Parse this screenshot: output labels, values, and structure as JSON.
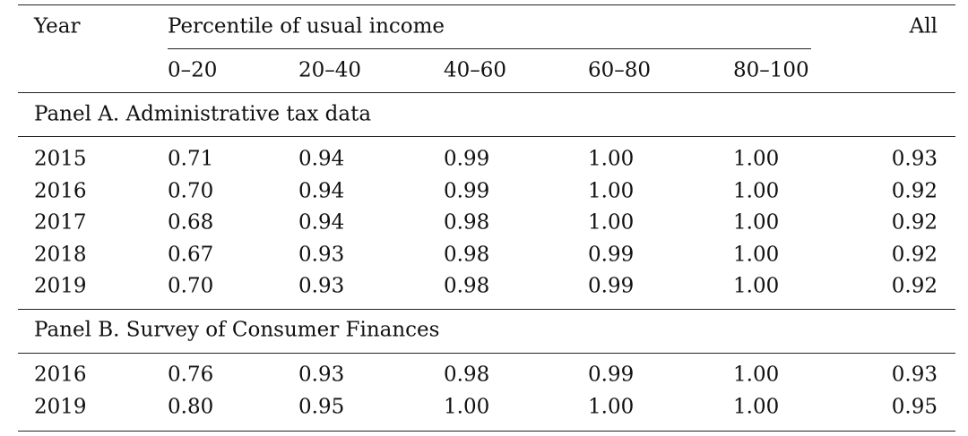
{
  "header": {
    "year": "Year",
    "group": "Percentile of usual income",
    "columns": [
      "0–20",
      "20–40",
      "40–60",
      "60–80",
      "80–100"
    ],
    "all": "All"
  },
  "panels": [
    {
      "title": "Panel A. Administrative tax data",
      "rows": [
        [
          "2015",
          "0.71",
          "0.94",
          "0.99",
          "1.00",
          "1.00",
          "0.93"
        ],
        [
          "2016",
          "0.70",
          "0.94",
          "0.99",
          "1.00",
          "1.00",
          "0.92"
        ],
        [
          "2017",
          "0.68",
          "0.94",
          "0.98",
          "1.00",
          "1.00",
          "0.92"
        ],
        [
          "2018",
          "0.67",
          "0.93",
          "0.98",
          "0.99",
          "1.00",
          "0.92"
        ],
        [
          "2019",
          "0.70",
          "0.93",
          "0.98",
          "0.99",
          "1.00",
          "0.92"
        ]
      ]
    },
    {
      "title": "Panel B. Survey of Consumer Finances",
      "rows": [
        [
          "2016",
          "0.76",
          "0.93",
          "0.98",
          "0.99",
          "1.00",
          "0.93"
        ],
        [
          "2019",
          "0.80",
          "0.95",
          "1.00",
          "1.00",
          "1.00",
          "0.95"
        ]
      ]
    }
  ]
}
